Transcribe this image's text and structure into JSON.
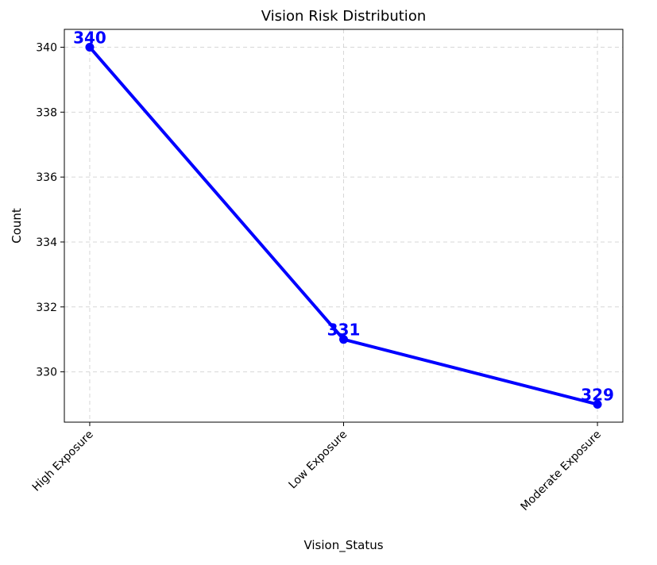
{
  "chart_data": {
    "type": "line",
    "title": "Vision Risk Distribution",
    "xlabel": "Vision_Status",
    "ylabel": "Count",
    "categories": [
      "High Exposure",
      "Low Exposure",
      "Moderate Exposure"
    ],
    "series": [
      {
        "values": [
          340,
          331,
          329
        ],
        "color": "#0000ff"
      }
    ],
    "data_labels": [
      "340",
      "331",
      "329"
    ],
    "ylim": [
      328.45,
      340.55
    ],
    "yticks": [
      330,
      332,
      334,
      336,
      338,
      340
    ],
    "ytick_labels": [
      "330",
      "332",
      "334",
      "336",
      "338",
      "340"
    ],
    "grid": true,
    "legend": "none",
    "markers": "circle",
    "x_tick_rotation": 45
  }
}
